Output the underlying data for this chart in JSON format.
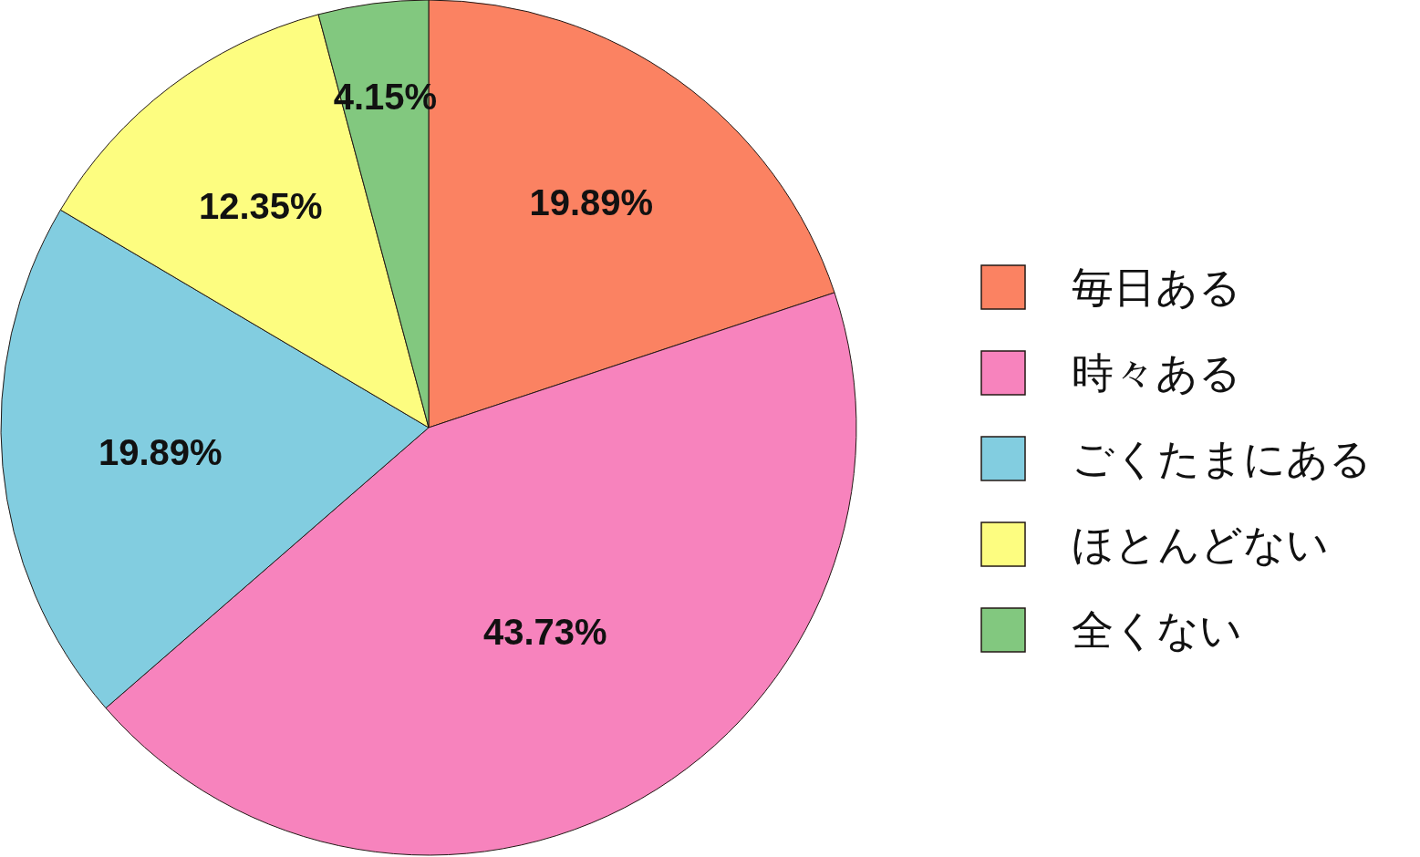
{
  "chart_data": {
    "type": "pie",
    "categories": [
      "毎日ある",
      "時々ある",
      "ごくたまにある",
      "ほとんどない",
      "全くない"
    ],
    "values": [
      19.89,
      43.73,
      19.89,
      12.35,
      4.15
    ],
    "colors": [
      "#fb8262",
      "#f783bd",
      "#82cde0",
      "#fdfd80",
      "#82c87f"
    ],
    "value_labels": [
      "19.89%",
      "43.73%",
      "19.89%",
      "12.35%",
      "4.15%"
    ],
    "legend": "right"
  }
}
